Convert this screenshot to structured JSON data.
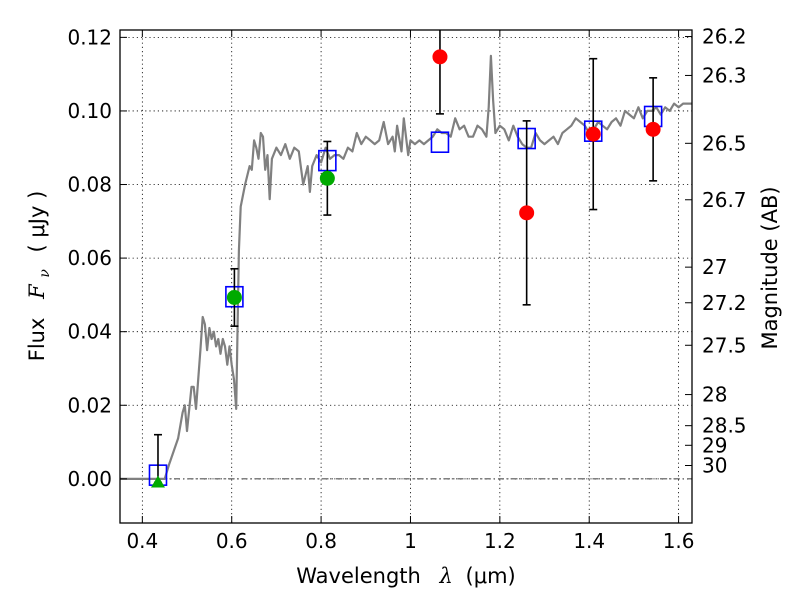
{
  "chart_data": {
    "type": "scatter",
    "title": "",
    "xlabel": {
      "text": "Wavelength",
      "symbol": "λ",
      "unit": "(μm)"
    },
    "ylabel": {
      "text": "Flux",
      "symbol": "F",
      "subscript": "ν",
      "unit": "( μJy )"
    },
    "y2label": "Magnitude (AB)",
    "xlim": [
      0.35,
      1.63
    ],
    "ylim": [
      -0.012,
      0.122
    ],
    "grid": true,
    "x_ticks": [
      0.4,
      0.6,
      0.8,
      1.0,
      1.2,
      1.4,
      1.6
    ],
    "x_tick_labels": [
      "0.4",
      "0.6",
      "0.8",
      "1",
      "1.2",
      "1.4",
      "1.6"
    ],
    "y_ticks": [
      0.0,
      0.02,
      0.04,
      0.06,
      0.08,
      0.1,
      0.12
    ],
    "y_tick_labels": [
      "0.00",
      "0.02",
      "0.04",
      "0.06",
      "0.08",
      "0.10",
      "0.12"
    ],
    "y2_ticks": [
      {
        "label": "26.2",
        "mag": 26.2
      },
      {
        "label": "26.3",
        "mag": 26.3
      },
      {
        "label": "26.5",
        "mag": 26.5
      },
      {
        "label": "26.7",
        "mag": 26.7
      },
      {
        "label": "27",
        "mag": 27.0
      },
      {
        "label": "27.2",
        "mag": 27.2
      },
      {
        "label": "27.5",
        "mag": 27.5
      },
      {
        "label": "28",
        "mag": 28.0
      },
      {
        "label": "28.5",
        "mag": 28.5
      },
      {
        "label": "29",
        "mag": 29.0
      },
      {
        "label": "30",
        "mag": 30.0
      }
    ],
    "series": [
      {
        "name": "model-spectrum",
        "kind": "line",
        "color": "#808080",
        "x": [
          0.35,
          0.45,
          0.46,
          0.48,
          0.49,
          0.495,
          0.5,
          0.51,
          0.515,
          0.52,
          0.53,
          0.535,
          0.54,
          0.545,
          0.55,
          0.555,
          0.56,
          0.565,
          0.57,
          0.575,
          0.58,
          0.585,
          0.59,
          0.595,
          0.6,
          0.605,
          0.61,
          0.613,
          0.616,
          0.62,
          0.63,
          0.64,
          0.645,
          0.65,
          0.655,
          0.66,
          0.665,
          0.67,
          0.675,
          0.68,
          0.685,
          0.69,
          0.7,
          0.71,
          0.72,
          0.73,
          0.74,
          0.75,
          0.76,
          0.77,
          0.775,
          0.78,
          0.79,
          0.8,
          0.81,
          0.82,
          0.83,
          0.84,
          0.85,
          0.86,
          0.87,
          0.88,
          0.89,
          0.9,
          0.91,
          0.92,
          0.93,
          0.94,
          0.95,
          0.96,
          0.965,
          0.97,
          0.98,
          0.985,
          0.99,
          0.995,
          1.0,
          1.01,
          1.02,
          1.03,
          1.04,
          1.05,
          1.06,
          1.07,
          1.08,
          1.09,
          1.1,
          1.11,
          1.12,
          1.13,
          1.14,
          1.15,
          1.16,
          1.17,
          1.175,
          1.18,
          1.185,
          1.19,
          1.2,
          1.21,
          1.22,
          1.23,
          1.24,
          1.25,
          1.26,
          1.27,
          1.28,
          1.29,
          1.3,
          1.31,
          1.32,
          1.33,
          1.34,
          1.35,
          1.36,
          1.37,
          1.38,
          1.39,
          1.4,
          1.41,
          1.42,
          1.43,
          1.44,
          1.45,
          1.46,
          1.47,
          1.48,
          1.49,
          1.5,
          1.51,
          1.52,
          1.53,
          1.54,
          1.55,
          1.56,
          1.57,
          1.58,
          1.59,
          1.6,
          1.61,
          1.62,
          1.63
        ],
        "y": [
          0.0,
          0.0,
          0.004,
          0.011,
          0.018,
          0.02,
          0.013,
          0.025,
          0.025,
          0.019,
          0.035,
          0.044,
          0.042,
          0.035,
          0.041,
          0.038,
          0.04,
          0.036,
          0.038,
          0.034,
          0.038,
          0.036,
          0.031,
          0.036,
          0.031,
          0.027,
          0.019,
          0.04,
          0.062,
          0.074,
          0.08,
          0.085,
          0.084,
          0.092,
          0.09,
          0.087,
          0.094,
          0.093,
          0.084,
          0.088,
          0.076,
          0.087,
          0.09,
          0.088,
          0.091,
          0.087,
          0.09,
          0.089,
          0.08,
          0.085,
          0.078,
          0.085,
          0.088,
          0.086,
          0.09,
          0.087,
          0.088,
          0.088,
          0.087,
          0.09,
          0.089,
          0.094,
          0.091,
          0.093,
          0.092,
          0.091,
          0.092,
          0.097,
          0.091,
          0.093,
          0.089,
          0.096,
          0.089,
          0.098,
          0.093,
          0.088,
          0.092,
          0.091,
          0.092,
          0.091,
          0.092,
          0.093,
          0.095,
          0.094,
          0.094,
          0.093,
          0.098,
          0.095,
          0.096,
          0.093,
          0.093,
          0.096,
          0.095,
          0.093,
          0.101,
          0.115,
          0.103,
          0.094,
          0.096,
          0.095,
          0.092,
          0.096,
          0.093,
          0.091,
          0.09,
          0.09,
          0.094,
          0.092,
          0.091,
          0.092,
          0.093,
          0.091,
          0.094,
          0.095,
          0.096,
          0.098,
          0.097,
          0.096,
          0.094,
          0.095,
          0.097,
          0.096,
          0.095,
          0.097,
          0.098,
          0.096,
          0.1,
          0.099,
          0.098,
          0.101,
          0.098,
          0.1,
          0.1,
          0.101,
          0.099,
          0.101,
          0.1,
          0.102,
          0.101,
          0.102,
          0.102,
          0.102
        ]
      },
      {
        "name": "model-band-fluxes",
        "kind": "open-square",
        "color": "#0000ff",
        "x": [
          0.435,
          0.606,
          0.814,
          1.066,
          1.26,
          1.409,
          1.543
        ],
        "y": [
          0.001,
          0.0495,
          0.0865,
          0.0915,
          0.0925,
          0.0945,
          0.0985
        ]
      },
      {
        "name": "observed-acs",
        "kind": "filled-circle",
        "color": "#00aa00",
        "x": [
          0.606,
          0.814
        ],
        "y": [
          0.0493,
          0.0817
        ],
        "yerr": [
          0.0078,
          0.01
        ]
      },
      {
        "name": "observed-acs-upper-limit",
        "kind": "filled-triangle",
        "color": "#00aa00",
        "x": [
          0.435
        ],
        "y": [
          -0.001
        ],
        "yerr_top": [
          0.012
        ]
      },
      {
        "name": "observed-nicmos-wfc3",
        "kind": "filled-circle",
        "color": "#ff0000",
        "x": [
          1.066,
          1.26,
          1.409,
          1.543
        ],
        "y": [
          0.1147,
          0.0723,
          0.0937,
          0.095
        ],
        "yerr": [
          0.0155,
          0.025,
          0.0205,
          0.014
        ]
      }
    ],
    "reference_line": {
      "y": 0.0,
      "style": "dash-dot",
      "color": "#000000"
    }
  }
}
